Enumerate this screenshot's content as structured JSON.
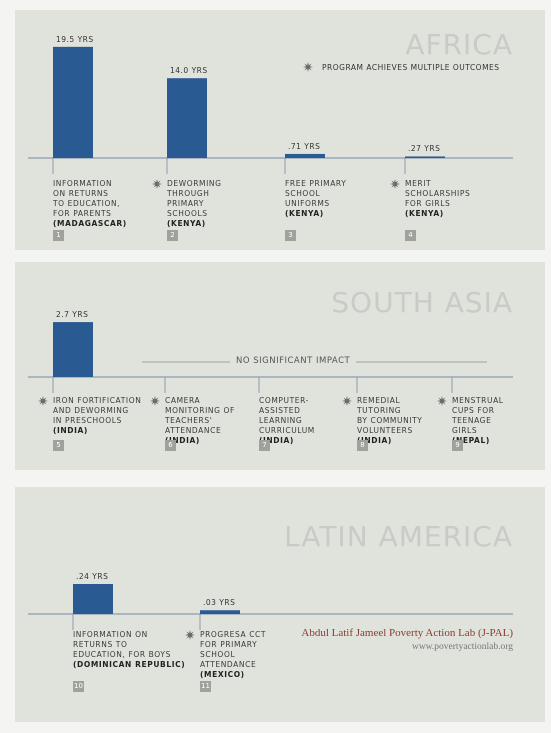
{
  "legend": "PROGRAM ACHIEVES MULTIPLE OUTCOMES",
  "credit": {
    "org": "Abdul Latif Jameel Poverty Action Lab (J-PAL)",
    "url": "www.povertyactionlab.org"
  },
  "chart_data": [
    {
      "type": "bar",
      "title": "AFRICA",
      "color": "#2a5a92",
      "ylim": [
        0,
        20
      ],
      "categories": [
        "INFORMATION\nON RETURNS\nTO EDUCATION,\nFOR PARENTS",
        "DEWORMING\nTHROUGH\nPRIMARY\nSCHOOLS",
        "FREE PRIMARY\nSCHOOL\nUNIFORMS",
        "MERIT\nSCHOLARSHIPS\nFOR GIRLS"
      ],
      "locations": [
        "(MADAGASCAR)",
        "(KENYA)",
        "(KENYA)",
        "(KENYA)"
      ],
      "numbers": [
        1,
        2,
        3,
        4
      ],
      "multiple_outcomes": [
        false,
        true,
        false,
        true
      ],
      "values": [
        19.5,
        14.0,
        0.71,
        0.27
      ],
      "value_labels": [
        "19.5 YRS",
        "14.0 YRS",
        ".71 YRS",
        ".27 YRS"
      ]
    },
    {
      "type": "bar",
      "title": "SOUTH ASIA",
      "color": "#2a5a92",
      "ylim": [
        0,
        3
      ],
      "annotation": "NO SIGNIFICANT IMPACT",
      "categories": [
        "IRON FORTIFICATION\nAND DEWORMING\nIN PRESCHOOLS",
        "CAMERA\nMONITORING OF\nTEACHERS'\nATTENDANCE",
        "COMPUTER-\nASSISTED\nLEARNING\nCURRICULUM",
        "REMEDIAL\nTUTORING\nBY COMMUNITY\nVOLUNTEERS",
        "MENSTRUAL\nCUPS FOR\nTEENAGE\nGIRLS"
      ],
      "locations": [
        "(INDIA)",
        "(INDIA)",
        "(INDIA)",
        "(INDIA)",
        "(NEPAL)"
      ],
      "numbers": [
        5,
        6,
        7,
        8,
        9
      ],
      "multiple_outcomes": [
        true,
        true,
        false,
        true,
        true
      ],
      "values": [
        2.7,
        null,
        null,
        null,
        null
      ],
      "value_labels": [
        "2.7 YRS",
        null,
        null,
        null,
        null
      ]
    },
    {
      "type": "bar",
      "title": "LATIN AMERICA",
      "color": "#2a5a92",
      "ylim": [
        0,
        0.3
      ],
      "categories": [
        "INFORMATION ON\nRETURNS TO\nEDUCATION, FOR BOYS",
        "PROGRESA CCT\nFOR PRIMARY\nSCHOOL\nATTENDANCE"
      ],
      "locations": [
        "(DOMINICAN REPUBLIC)",
        "(MEXICO)"
      ],
      "numbers": [
        10,
        11
      ],
      "multiple_outcomes": [
        false,
        true
      ],
      "values": [
        0.24,
        0.03
      ],
      "value_labels": [
        ".24 YRS",
        ".03 YRS"
      ]
    }
  ]
}
